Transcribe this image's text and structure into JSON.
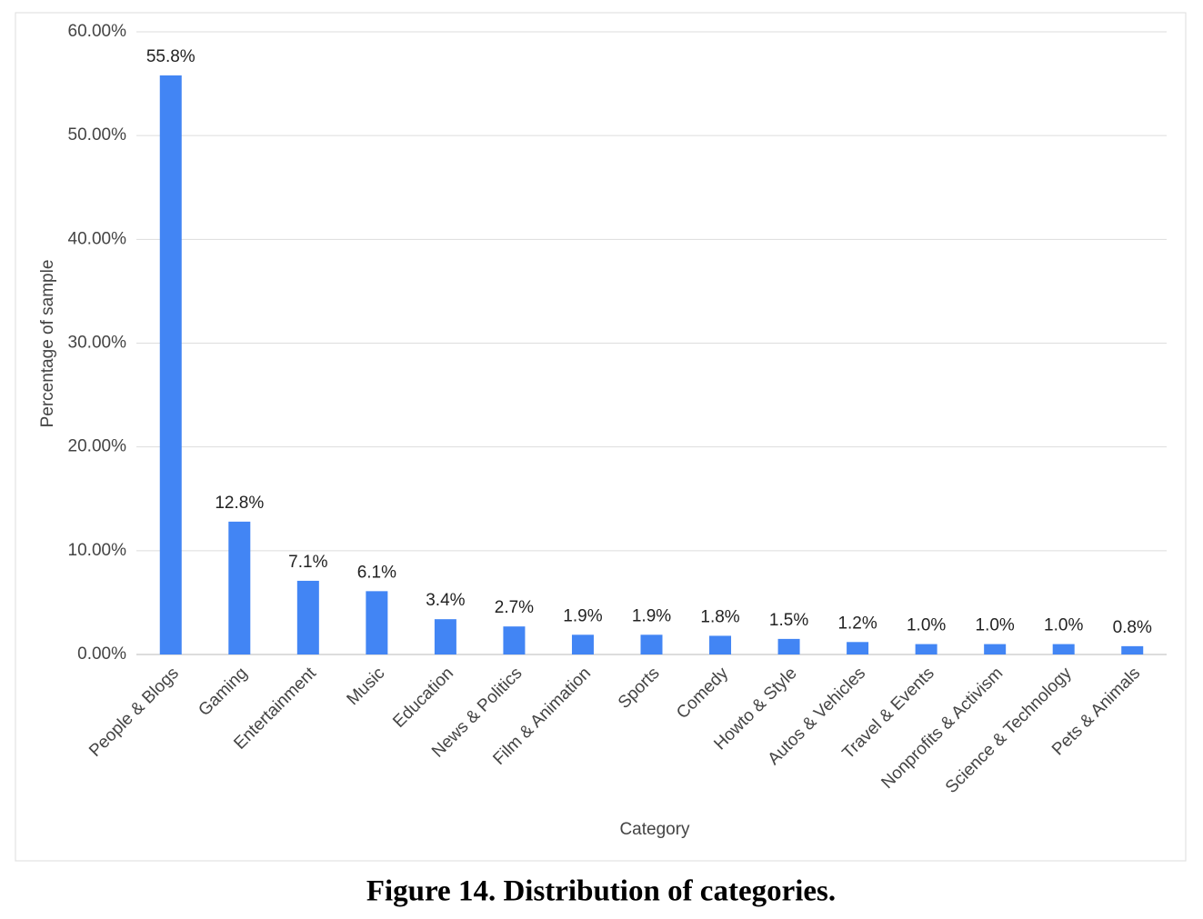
{
  "chart_data": {
    "type": "bar",
    "x_label": "Category",
    "y_label": "Percentage of sample",
    "caption": "Figure 14. Distribution of categories.",
    "categories": [
      "People & Blogs",
      "Gaming",
      "Entertainment",
      "Music",
      "Education",
      "News & Politics",
      "Film & Animation",
      "Sports",
      "Comedy",
      "Howto & Style",
      "Autos & Vehicles",
      "Travel & Events",
      "Nonprofits & Activism",
      "Science & Technology",
      "Pets & Animals"
    ],
    "values": [
      55.8,
      12.8,
      7.1,
      6.1,
      3.4,
      2.7,
      1.9,
      1.9,
      1.8,
      1.5,
      1.2,
      1.0,
      1.0,
      1.0,
      0.8
    ],
    "value_labels": [
      "55.8%",
      "12.8%",
      "7.1%",
      "6.1%",
      "3.4%",
      "2.7%",
      "1.9%",
      "1.9%",
      "1.8%",
      "1.5%",
      "1.2%",
      "1.0%",
      "1.0%",
      "1.0%",
      "0.8%"
    ],
    "color": "#4285f4",
    "ylim": [
      0,
      60
    ],
    "yticks": [
      {
        "value": 0,
        "label": "0.00%"
      },
      {
        "value": 10,
        "label": "10.00%"
      },
      {
        "value": 20,
        "label": "20.00%"
      },
      {
        "value": 30,
        "label": "30.00%"
      },
      {
        "value": 40,
        "label": "40.00%"
      },
      {
        "value": 50,
        "label": "50.00%"
      },
      {
        "value": 60,
        "label": "60.00%"
      }
    ],
    "grid": true
  }
}
